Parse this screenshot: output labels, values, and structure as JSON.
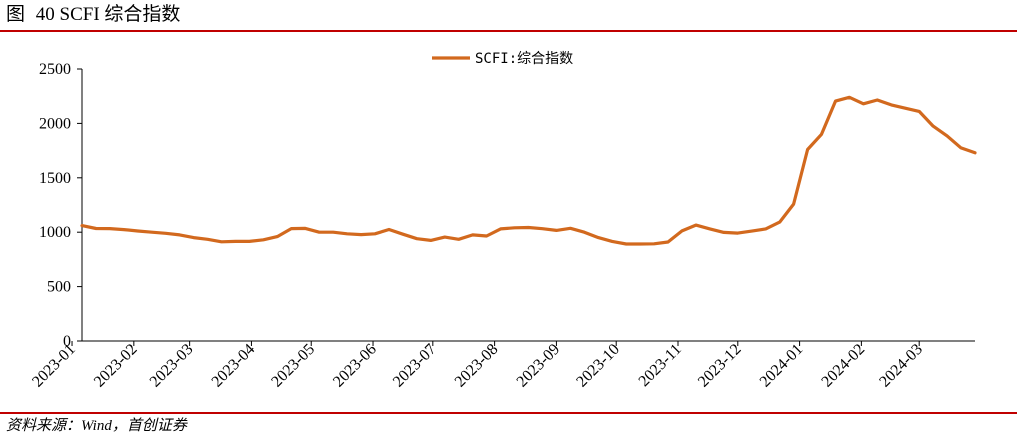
{
  "header": {
    "figure_label": "图",
    "figure_number": "40",
    "figure_title": "SCFI 综合指数"
  },
  "footer": {
    "source": "资料来源：Wind，首创证券"
  },
  "chart_data": {
    "type": "line",
    "title": "",
    "xlabel": "",
    "ylabel": "",
    "ylim": [
      0,
      2500
    ],
    "yticks": [
      0,
      500,
      1000,
      1500,
      2000,
      2500
    ],
    "xlim": [
      "2023-01-06",
      "2024-03-29"
    ],
    "xticks": [
      "2023-01",
      "2023-02",
      "2023-03",
      "2023-04",
      "2023-05",
      "2023-06",
      "2023-07",
      "2023-08",
      "2023-09",
      "2023-10",
      "2023-11",
      "2023-12",
      "2024-01",
      "2024-02",
      "2024-03"
    ],
    "grid": false,
    "legend_position": "top-center",
    "series": [
      {
        "name": "SCFI:综合指数",
        "color": "#d2691e",
        "x": [
          "2023-01-06",
          "2023-01-13",
          "2023-01-20",
          "2023-01-27",
          "2023-02-03",
          "2023-02-10",
          "2023-02-17",
          "2023-02-24",
          "2023-03-03",
          "2023-03-10",
          "2023-03-17",
          "2023-03-24",
          "2023-03-31",
          "2023-04-07",
          "2023-04-14",
          "2023-04-21",
          "2023-04-28",
          "2023-05-05",
          "2023-05-12",
          "2023-05-19",
          "2023-05-26",
          "2023-06-02",
          "2023-06-09",
          "2023-06-16",
          "2023-06-23",
          "2023-06-30",
          "2023-07-07",
          "2023-07-14",
          "2023-07-21",
          "2023-07-28",
          "2023-08-04",
          "2023-08-11",
          "2023-08-18",
          "2023-08-25",
          "2023-09-01",
          "2023-09-08",
          "2023-09-15",
          "2023-09-22",
          "2023-09-29",
          "2023-10-06",
          "2023-10-13",
          "2023-10-20",
          "2023-10-27",
          "2023-11-03",
          "2023-11-10",
          "2023-11-17",
          "2023-11-24",
          "2023-12-01",
          "2023-12-08",
          "2023-12-15",
          "2023-12-22",
          "2023-12-29",
          "2024-01-05",
          "2024-01-12",
          "2024-01-19",
          "2024-01-26",
          "2024-02-02",
          "2024-02-09",
          "2024-02-16",
          "2024-02-23",
          "2024-03-01",
          "2024-03-08",
          "2024-03-15",
          "2024-03-22",
          "2024-03-29"
        ],
        "y": [
          1061,
          1034,
          1033,
          1024,
          1011,
          1000,
          990,
          975,
          950,
          935,
          912,
          915,
          915,
          930,
          960,
          1033,
          1035,
          1000,
          1000,
          985,
          978,
          985,
          1025,
          982,
          940,
          925,
          955,
          935,
          975,
          965,
          1030,
          1040,
          1043,
          1032,
          1017,
          1036,
          1000,
          950,
          915,
          892,
          892,
          893,
          910,
          1012,
          1065,
          1030,
          998,
          992,
          1010,
          1030,
          1093,
          1258,
          1760,
          1900,
          2205,
          2240,
          2180,
          2215,
          2170,
          2140,
          2110,
          1975,
          1885,
          1775,
          1730
        ]
      }
    ]
  }
}
